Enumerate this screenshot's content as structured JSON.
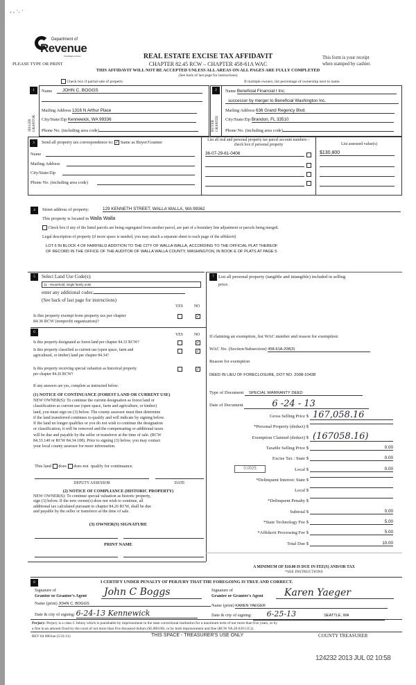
{
  "header": {
    "scan_marks": "ₓ , ·. ·",
    "logo_dept": "Department of",
    "logo_name": "Revenue",
    "logo_state": "Washington State",
    "please_type": "PLEASE TYPE OR PRINT",
    "title": "REAL ESTATE EXCISE TAX AFFIDAVIT",
    "chapter": "CHAPTER 82.45 RCW – CHAPTER 458-61A WAC",
    "receipt_1": "This form is your receipt",
    "receipt_2": "when stamped by cashier.",
    "warning": "THIS AFFIDAVIT WILL NOT BE ACCEPTED UNLESS ALL AREAS ON ALL PAGES ARE FULLY COMPLETED",
    "see_back": "(See back of last page for instructions)",
    "partial_sale": "Check box if partial sale of property",
    "multiple_owners": "If multiple owners, list percentage of ownership next to name."
  },
  "seller": {
    "num": "1",
    "side": "SELLER GRANTOR",
    "name_label": "Name",
    "name": "JOHN C. BOGGS",
    "mail_label": "Mailing Address",
    "mail": "1316 N Arthur Place",
    "city_label": "City/State/Zip",
    "city": "Kennewick, WA 99336",
    "phone_label": "Phone No. (including area code)"
  },
  "buyer": {
    "num": "2",
    "side": "BUYER GRANTEE",
    "name_label": "Name",
    "name": "Beneficial Financial I Inc.",
    "name2": "successor by merger to Beneficial Washington Inc.",
    "mail_label": "Mailing Address",
    "mail": "636 Grand Regency Blvd.",
    "city_label": "City/State/Zip",
    "city": "Brandon, FL  33510",
    "phone_label": "Phone No. (including area code)"
  },
  "sec3": {
    "num": "3",
    "send_label": "Send all property tax correspondence to:",
    "same_as": "Same as Buyer/Grantee",
    "same_checked": true,
    "name_label": "Name",
    "mail_label": "Mailing Address",
    "city_label": "City/State/Zip",
    "phone_label": "Phone No. (including area code)",
    "parcel_header": "List all real and personal property tax parcel account numbers – check box if personal property",
    "assessed_header": "List assessed value(s)",
    "parcel": "36-07-29-61-0406",
    "assessed": "$130,800"
  },
  "sec4": {
    "num": "4",
    "street_label": "Street address of property:",
    "street": "129 KENNETH STREET, WALLA WALLA, WA  99362",
    "located_label": "This property is located in",
    "located": "Walla Walla",
    "segregated": "Check box if any of the listed parcels are being segregated from another parcel, are part of a boundary line adjustment or parcels being merged.",
    "legal_label": "Legal description of property (if more space is needed, you may attach a separate sheet to each page of the affidavit)",
    "legal_1": "LOT 6 IN BLOCK 4 OF FAIRFIELD ADDITION TO THE CITY OF WALLA WALLA, ACCORDING TO THE OFFICIAL PLAT THEREOF",
    "legal_2": "OF RECORD IN THE OFFICE OF THE AUDITOR OF WALLA WALLA COUNTY, WASHINGTON, IN BOOK E OF PLATS AT PAGE 5."
  },
  "sec5": {
    "num": "5",
    "title": "Select Land Use Code(s):",
    "code": "11 - Household, single family units",
    "additional": "enter any additional codes:",
    "see_back": "(See back of last page for instructions)",
    "yes": "YES",
    "no": "NO",
    "exempt_q1": "Is this property exempt from property tax per chapter",
    "exempt_q2": "84.36 RCW (nonprofit organization)?"
  },
  "sec6": {
    "num": "6",
    "yes": "YES",
    "no": "NO",
    "q1": "Is this property designated as forest land per chapter 84.33 RCW?",
    "q2a": "Is this property classified as current use (open space, farm and",
    "q2b": "agricultural, or timber) land per chapter 84.34?",
    "q3a": "Is this property receiving special valuation as historical property",
    "q3b": "per chapter 84.26 RCW?",
    "if_yes": "If any answers are yes, complete as instructed below.",
    "n1_title": "(1) NOTICE OF CONTINUANCE  (FOREST LAND OR CURRENT USE)",
    "n1_lines": [
      "NEW OWNER(S): To continue the current designation as forest land or",
      "classification as current use (open space, farm and agriculture, or timber)",
      "land, you must sign on (3) below. The county assessor must then determine",
      "if the land transferred continues to qualify and will indicate by signing below.",
      "If the land no longer qualifies or you do not wish to continue the designation",
      "or classification, it will be removed and the compensating or additional taxes",
      "will be due and payable by the seller or transferor at the time of sale. (RCW",
      "84.33.140 or RCW 84.34.108). Prior to signing (3) below, you may contact",
      "your local county assessor for more information."
    ],
    "this_land": "This land",
    "does": "does",
    "does_not": "does not",
    "qualify": "qualify for continuance.",
    "deputy": "DEPUTY ASSESSOR",
    "date": "DATE",
    "n2_title": "(2) NOTICE OF COMPLIANCE (HISTORIC PROPERTY)",
    "n2_lines": [
      "NEW OWNER(S): To continue special valuation as historic property,",
      "sign (3) below. If the new owner(s) does not wish to continue, all",
      "additional tax calculated pursuant to chapter 84.26 RCW, shall be due",
      "and payable by the seller or transferor at the time of sale."
    ],
    "n3_title": "(3)  OWNER(S) SIGNATURE",
    "print_name": "PRINT NAME"
  },
  "sec7": {
    "num": "7",
    "list_1": "List all  personal property (tangible and intangible) included in selling",
    "list_2": "price.",
    "exemption_label": "If claiming an exemption, list WAC number and reason for exemption:",
    "wac_label": "WAC No. (Section/Subsection)",
    "wac": "458-61A-208(3)",
    "reason_label": "Reason for exemption",
    "reason": "DEED IN LIEU OF FORECLOSURE, DOT NO. 2008-10438",
    "doc_type_label": "Type of Document",
    "doc_type": "SPECIAL WARRANTY DEED",
    "doc_date_label": "Date of Document",
    "doc_date": "6 -24 - 13",
    "local_rate": "0.0025",
    "fees": [
      {
        "label": "Gross Selling Price $",
        "value": "167,058.16",
        "hand": true
      },
      {
        "label": "*Personal Property (deduct) $",
        "value": ""
      },
      {
        "label": "Exemption Claimed (deduct) $",
        "value": "(167058.16)",
        "hand": true
      },
      {
        "label": "Taxable Selling Price $",
        "value": "0.00"
      },
      {
        "label": "Excise Tax : State $",
        "value": "0.00"
      },
      {
        "label": "Local $",
        "value": "0.00"
      },
      {
        "label": "*Delinquent Interest: State $",
        "value": ""
      },
      {
        "label": "Local $",
        "value": ""
      },
      {
        "label": "*Delinquent Penalty $",
        "value": ""
      },
      {
        "label": "Subtotal $",
        "value": "0.00"
      },
      {
        "label": "*State Technology Fee $",
        "value": "5.00"
      },
      {
        "label": "*Affidavit Processing Fee $",
        "value": "5.00"
      },
      {
        "label": "Total Due $",
        "value": "10.00"
      }
    ],
    "minimum": "A MINIMUM OF $10.00 IS DUE IN FEE(S) AND/OR TAX",
    "see_instr": "*SEE INSTRUCTIONS"
  },
  "sec8": {
    "num": "8",
    "certify": "I CERTIFY UNDER PENALTY OF PERJURY THAT THE FOREGOING IS TRUE AND CORRECT.",
    "sig_of": "Signature of",
    "grantor_agent": "Grantor or Grantor's Agent",
    "grantee_agent": "Grantee or Grantee's Agent",
    "grantor_sig": "John C Boggs",
    "grantee_sig": "Karen Yaeger",
    "name_print_label": "Name (print)",
    "grantor_name": "JOHN C. BOGGS",
    "grantee_name": "KAREN YAEGER",
    "date_city_label": "Date & city of signing:",
    "grantor_date_city": "6-24-13  Kennewick",
    "grantee_date": "6-25-13",
    "grantee_city": "SEATTLE, WA",
    "perjury_bold": "Perjury:",
    "perjury_1": "Perjury is a class C felony which is punishable by imprisonment in the state correctional institution for a maximum term of not more than five years, or by",
    "perjury_2": "a fine in an amount fixed by the court of not more than five thousand dollars ($5,000.00), or by both imprisonment and fine (RCW 9A.20.020 (1C))."
  },
  "footer": {
    "rev": "REV 84 0001ae (5/31/11)",
    "treasurer_space": "THIS SPACE - TREASURER'S USE ONLY",
    "county_treasurer": "COUNTY TREASURER",
    "stamp": "124232 2013 JUL 02 10:58"
  }
}
